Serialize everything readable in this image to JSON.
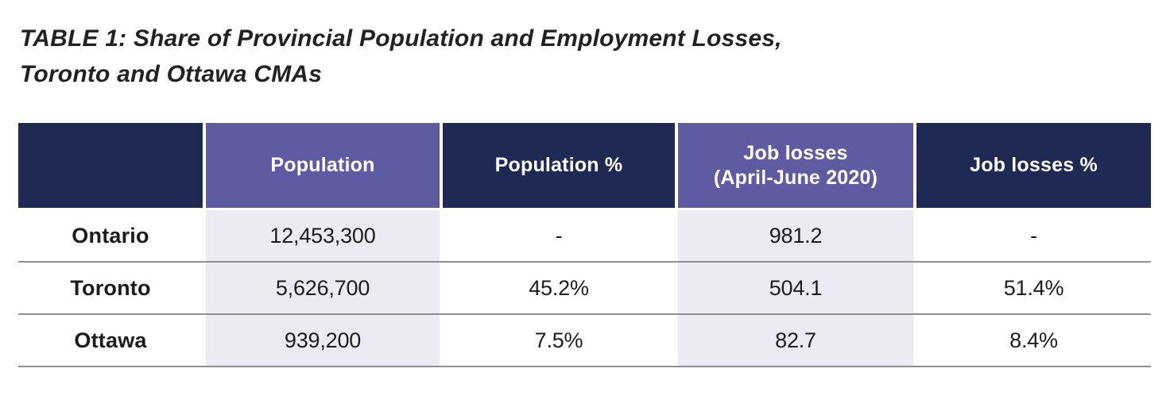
{
  "title": {
    "line1": "TABLE 1: Share of Provincial Population and Employment Losses,",
    "line2": "Toronto and Ottawa CMAs"
  },
  "table": {
    "columns": [
      {
        "label": ""
      },
      {
        "label": "Population"
      },
      {
        "label": "Population %"
      },
      {
        "label": "Job losses",
        "label_line2": "(April-June 2020)"
      },
      {
        "label": "Job losses %"
      }
    ],
    "rows": [
      {
        "label": "Ontario",
        "population": "12,453,300",
        "population_pct": "-",
        "job_losses": "981.2",
        "job_losses_pct": "-"
      },
      {
        "label": "Toronto",
        "population": "5,626,700",
        "population_pct": "45.2%",
        "job_losses": "504.1",
        "job_losses_pct": "51.4%"
      },
      {
        "label": "Ottawa",
        "population": "939,200",
        "population_pct": "7.5%",
        "job_losses": "82.7",
        "job_losses_pct": "8.4%"
      }
    ]
  },
  "colors": {
    "header_navy": "#1e2a54",
    "header_purple": "#5f5ba2",
    "column_highlight_lavender": "#ecebf3",
    "row_separator_gray": "#8f8f8f",
    "title_text": "#232122",
    "body_text": "#1c1c1c",
    "header_text": "#ffffff"
  }
}
